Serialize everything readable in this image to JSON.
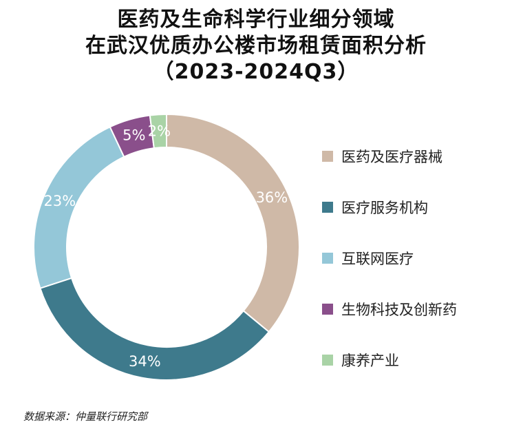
{
  "colors": {
    "medical_devices": "#cfb9a7",
    "medical_services": "#3e7a8c",
    "internet_medical": "#94c7d8",
    "biotech": "#8a4f8b",
    "health_industry": "#a9d3a6"
  },
  "chart_data": {
    "type": "pie",
    "donut": true,
    "title": [
      "医药及生命科学行业细分领域",
      "在武汉优质办公楼市场租赁面积分析",
      "（2023-2024Q3）"
    ],
    "categories": [
      "医药及医疗器械",
      "医疗服务机构",
      "互联网医疗",
      "生物科技及创新药",
      "康养产业"
    ],
    "values": [
      36,
      34,
      23,
      5,
      2
    ],
    "labels": [
      "36%",
      "34%",
      "23%",
      "5%",
      "2%"
    ],
    "unit": "%",
    "legend_position": "right"
  },
  "source": "数据来源：仲量联行研究部"
}
